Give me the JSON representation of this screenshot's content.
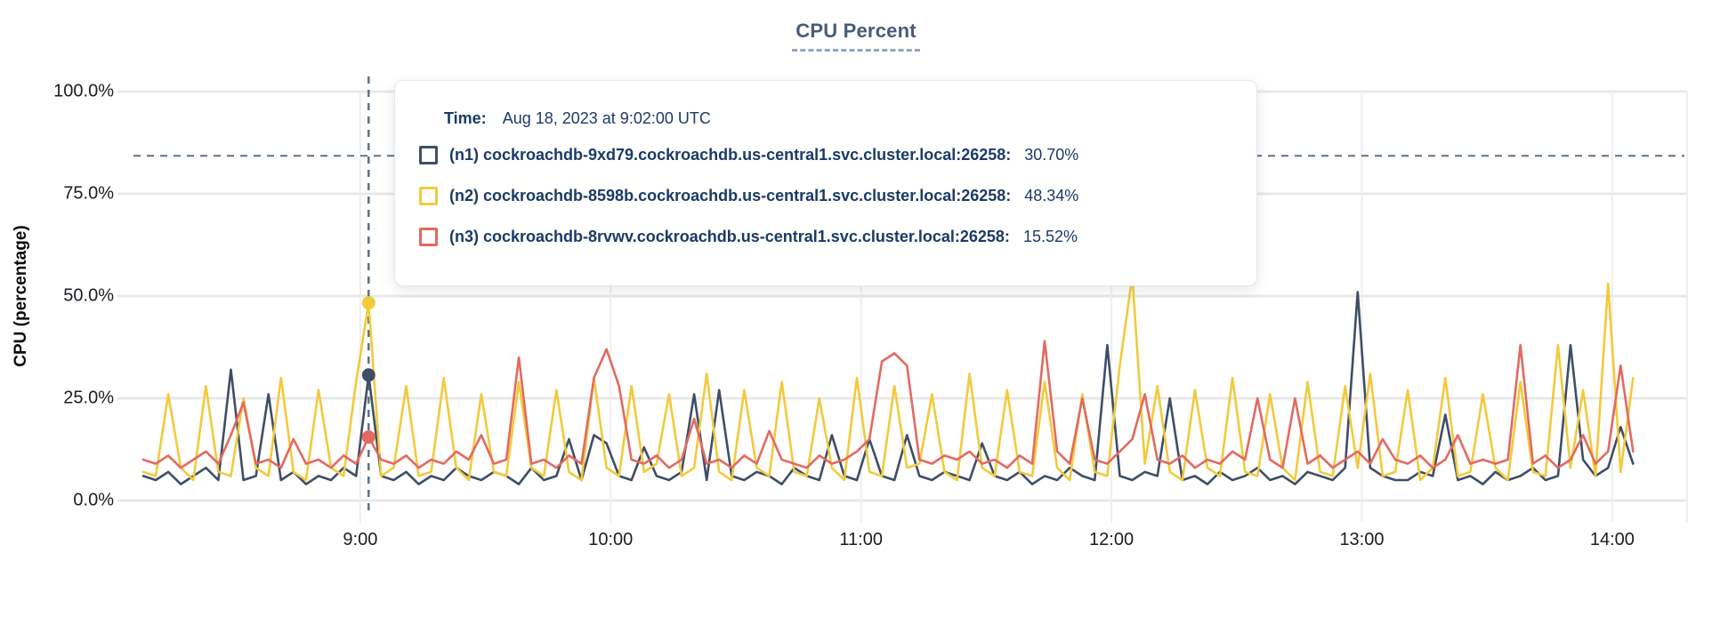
{
  "title": "CPU Percent",
  "y_axis": {
    "label": "CPU (percentage)"
  },
  "tooltip": {
    "time_label": "Time:",
    "time_value": "Aug 18, 2023 at 9:02:00 UTC",
    "rows": [
      {
        "name": "(n1) cockroachdb-9xd79.cockroachdb.us-central1.svc.cluster.local:26258:",
        "value": "30.70%",
        "color": "#3f4e66"
      },
      {
        "name": "(n2) cockroachdb-8598b.cockroachdb.us-central1.svc.cluster.local:26258:",
        "value": "48.34%",
        "color": "#f2ca3b"
      },
      {
        "name": "(n3) cockroachdb-8rvwv.cockroachdb.us-central1.svc.cluster.local:26258:",
        "value": "15.52%",
        "color": "#e26a60"
      }
    ]
  },
  "chart_data": {
    "type": "line",
    "title": "CPU Percent",
    "ylabel": "CPU (percentage)",
    "ylim": [
      0,
      100
    ],
    "grid": true,
    "x_start_time": "8:08",
    "step_minutes": 3,
    "y_ticks": [
      {
        "label": "100.0%",
        "value": 100
      },
      {
        "label": "75.0%",
        "value": 75
      },
      {
        "label": "50.0%",
        "value": 50
      },
      {
        "label": "25.0%",
        "value": 25
      },
      {
        "label": "0.0%",
        "value": 0
      }
    ],
    "x_ticks": [
      {
        "label": "9:00",
        "minutes": 52
      },
      {
        "label": "10:00",
        "minutes": 112
      },
      {
        "label": "11:00",
        "minutes": 172
      },
      {
        "label": "12:00",
        "minutes": 232
      },
      {
        "label": "13:00",
        "minutes": 292
      },
      {
        "label": "14:00",
        "minutes": 352
      }
    ],
    "hover": {
      "index": 18,
      "time": "Aug 18, 2023 at 9:02:00 UTC",
      "h_line_percent": 84.3,
      "values": {
        "n1": 30.7,
        "n2": 48.34,
        "n3": 15.52
      }
    },
    "series": [
      {
        "id": "n1",
        "name": "(n1) cockroachdb-9xd79.cockroachdb.us-central1.svc.cluster.local:26258",
        "color": "#3f4e66",
        "values": [
          6,
          5,
          7,
          4,
          6,
          8,
          5,
          32,
          5,
          6,
          26,
          5,
          7,
          4,
          6,
          5,
          8,
          6,
          30.7,
          6,
          5,
          7,
          4,
          6,
          5,
          8,
          6,
          5,
          7,
          6,
          4,
          8,
          5,
          6,
          15,
          5,
          16,
          14,
          6,
          5,
          13,
          6,
          5,
          7,
          26,
          5,
          27,
          6,
          5,
          7,
          6,
          4,
          8,
          6,
          5,
          16,
          6,
          5,
          15,
          6,
          5,
          16,
          6,
          5,
          7,
          6,
          5,
          14,
          6,
          5,
          7,
          4,
          6,
          5,
          8,
          6,
          5,
          38,
          6,
          5,
          7,
          6,
          25,
          5,
          6,
          4,
          7,
          5,
          6,
          8,
          5,
          6,
          4,
          7,
          6,
          5,
          8,
          51,
          8,
          6,
          5,
          5,
          7,
          6,
          21,
          5,
          6,
          4,
          7,
          5,
          6,
          8,
          5,
          6,
          38,
          10,
          6,
          8,
          18,
          9
        ]
      },
      {
        "id": "n2",
        "name": "(n2) cockroachdb-8598b.cockroachdb.us-central1.svc.cluster.local:26258",
        "color": "#f2ca3b",
        "values": [
          7,
          6,
          26,
          8,
          5,
          28,
          7,
          6,
          25,
          8,
          6,
          30,
          7,
          5,
          27,
          8,
          6,
          29,
          48.34,
          6,
          8,
          28,
          6,
          7,
          30,
          8,
          5,
          26,
          7,
          6,
          29,
          8,
          6,
          27,
          7,
          5,
          30,
          8,
          6,
          28,
          7,
          9,
          26,
          6,
          8,
          31,
          7,
          5,
          27,
          8,
          6,
          29,
          7,
          6,
          25,
          8,
          5,
          30,
          7,
          6,
          28,
          8,
          9,
          26,
          7,
          5,
          31,
          8,
          6,
          27,
          7,
          6,
          29,
          8,
          5,
          26,
          7,
          6,
          33,
          55,
          9,
          28,
          7,
          5,
          27,
          8,
          6,
          30,
          7,
          6,
          26,
          8,
          5,
          29,
          7,
          6,
          28,
          8,
          31,
          6,
          7,
          27,
          5,
          8,
          30,
          6,
          7,
          26,
          8,
          5,
          29,
          7,
          6,
          38,
          8,
          27,
          6,
          53,
          7,
          30
        ]
      },
      {
        "id": "n3",
        "name": "(n3) cockroachdb-8rvwv.cockroachdb.us-central1.svc.cluster.local:26258",
        "color": "#e26a60",
        "values": [
          10,
          9,
          11,
          8,
          10,
          12,
          9,
          16,
          24,
          9,
          10,
          8,
          15,
          9,
          10,
          8,
          11,
          9,
          15.52,
          10,
          9,
          11,
          8,
          10,
          9,
          12,
          10,
          16,
          9,
          10,
          35,
          9,
          10,
          8,
          11,
          9,
          30,
          37,
          28,
          10,
          9,
          11,
          8,
          10,
          20,
          9,
          10,
          8,
          11,
          9,
          17,
          10,
          9,
          8,
          11,
          9,
          10,
          12,
          15,
          34,
          36,
          33,
          10,
          9,
          11,
          10,
          12,
          9,
          10,
          8,
          11,
          9,
          39,
          12,
          9,
          25,
          10,
          9,
          12,
          15,
          26,
          10,
          9,
          11,
          8,
          10,
          9,
          12,
          10,
          25,
          10,
          8,
          25,
          9,
          11,
          8,
          10,
          12,
          9,
          15,
          10,
          9,
          11,
          8,
          10,
          16,
          9,
          10,
          9,
          10,
          38,
          9,
          11,
          8,
          10,
          16,
          9,
          12,
          33,
          12
        ]
      }
    ]
  }
}
